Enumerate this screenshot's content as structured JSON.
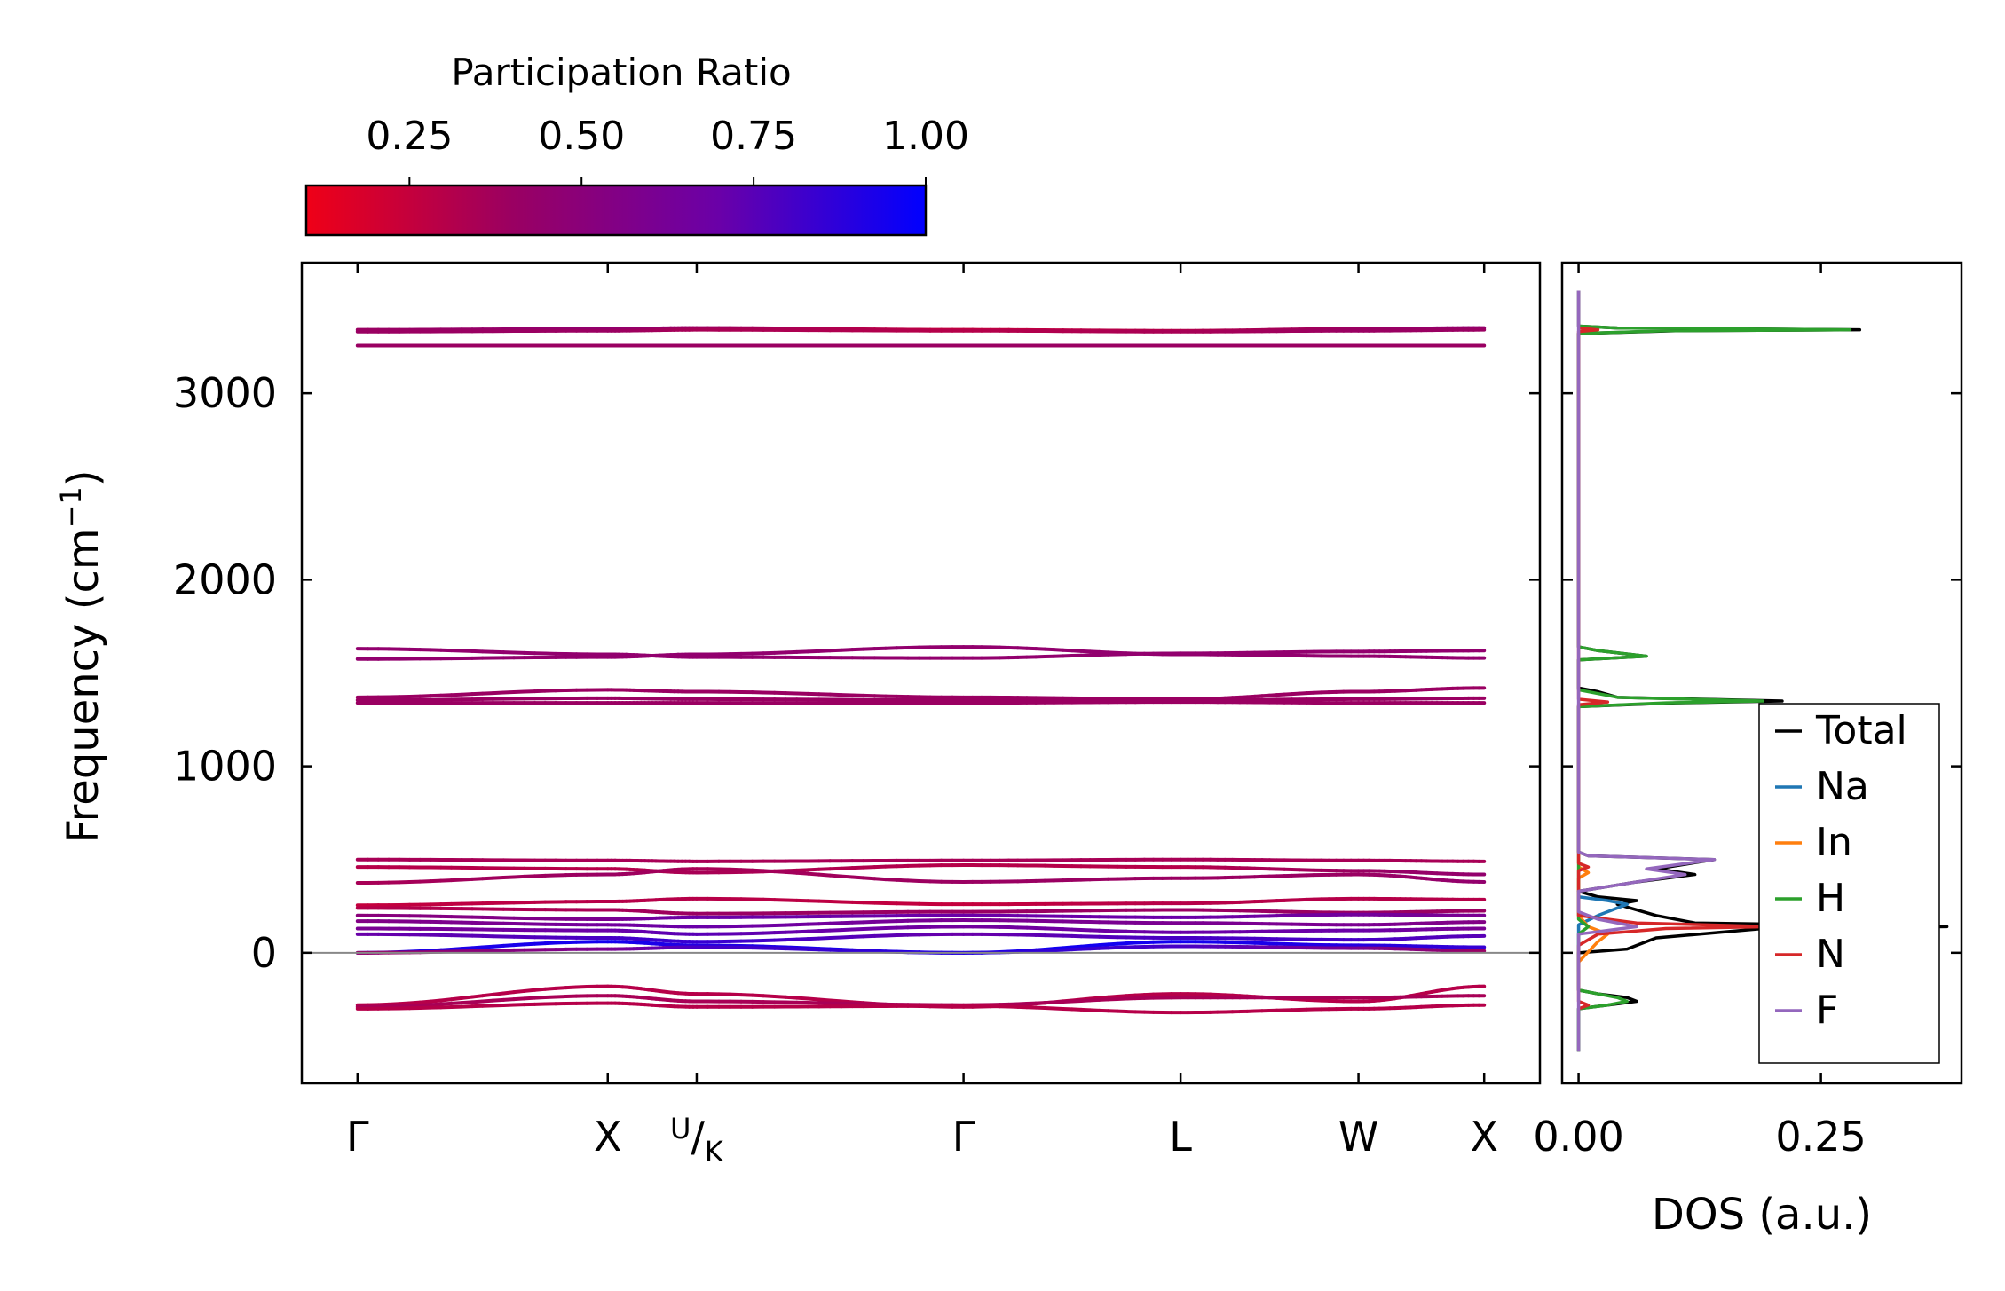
{
  "chart_data": [
    {
      "type": "line",
      "name": "phonon-band-structure",
      "ylabel": "Frequency (cm",
      "ylabel_sup": "−1",
      "ylabel_end": ")",
      "ylim": [
        -700,
        3700
      ],
      "yticks": [
        0,
        1000,
        2000,
        3000
      ],
      "ytick_labels": [
        "0",
        "1000",
        "2000",
        "3000"
      ],
      "kpath": [
        {
          "label": "Γ",
          "pos": 0.0
        },
        {
          "label": "X",
          "pos": 0.211
        },
        {
          "label": "U",
          "sub": "K",
          "pos": 0.286
        },
        {
          "label": "Γ",
          "pos": 0.511
        },
        {
          "label": "L",
          "pos": 0.694
        },
        {
          "label": "W",
          "pos": 0.844
        },
        {
          "label": "X",
          "pos": 0.95
        }
      ],
      "xlim": [
        -0.047,
        0.997
      ],
      "colorbar": {
        "label": "Participation Ratio",
        "range": [
          0.1,
          1.0
        ],
        "ticks": [
          0.25,
          0.5,
          0.75,
          1.0
        ],
        "tick_labels": [
          "0.25",
          "0.50",
          "0.75",
          "1.00"
        ],
        "colors": [
          "#ef0017",
          "#9a0062",
          "#6a00a8",
          "#0000ff"
        ]
      },
      "zero_line": 0,
      "bands": [
        {
          "values": [
            3340,
            3345,
            3350,
            3340,
            3335,
            3345,
            3350
          ],
          "pr": [
            0.4,
            0.45,
            0.4,
            0.25,
            0.3,
            0.4,
            0.45
          ]
        },
        {
          "values": [
            3330,
            3335,
            3340,
            3335,
            3330,
            3335,
            3340
          ],
          "pr": [
            0.4,
            0.4,
            0.35,
            0.3,
            0.35,
            0.4,
            0.4
          ]
        },
        {
          "values": [
            3255,
            3255,
            3255,
            3255,
            3255,
            3255,
            3255
          ],
          "pr": [
            0.4,
            0.4,
            0.4,
            0.4,
            0.4,
            0.4,
            0.4
          ]
        },
        {
          "values": [
            1630,
            1600,
            1585,
            1580,
            1605,
            1615,
            1620
          ],
          "pr": [
            0.45,
            0.45,
            0.45,
            0.45,
            0.45,
            0.45,
            0.45
          ]
        },
        {
          "values": [
            1575,
            1585,
            1600,
            1640,
            1600,
            1590,
            1580
          ],
          "pr": [
            0.45,
            0.45,
            0.45,
            0.45,
            0.45,
            0.45,
            0.45
          ]
        },
        {
          "values": [
            1370,
            1410,
            1400,
            1370,
            1360,
            1400,
            1420
          ],
          "pr": [
            0.4,
            0.4,
            0.4,
            0.4,
            0.4,
            0.4,
            0.4
          ]
        },
        {
          "values": [
            1355,
            1365,
            1360,
            1355,
            1355,
            1360,
            1365
          ],
          "pr": [
            0.4,
            0.4,
            0.4,
            0.4,
            0.4,
            0.4,
            0.4
          ]
        },
        {
          "values": [
            1340,
            1340,
            1340,
            1340,
            1345,
            1340,
            1340
          ],
          "pr": [
            0.4,
            0.4,
            0.4,
            0.4,
            0.4,
            0.4,
            0.4
          ]
        },
        {
          "values": [
            500,
            495,
            490,
            495,
            500,
            495,
            490
          ],
          "pr": [
            0.35,
            0.35,
            0.35,
            0.35,
            0.35,
            0.35,
            0.35
          ]
        },
        {
          "values": [
            460,
            450,
            430,
            470,
            460,
            440,
            420
          ],
          "pr": [
            0.3,
            0.3,
            0.35,
            0.3,
            0.3,
            0.4,
            0.45
          ]
        },
        {
          "values": [
            375,
            420,
            450,
            380,
            400,
            420,
            380
          ],
          "pr": [
            0.35,
            0.4,
            0.35,
            0.4,
            0.4,
            0.4,
            0.45
          ]
        },
        {
          "values": [
            255,
            275,
            290,
            260,
            265,
            290,
            285
          ],
          "pr": [
            0.25,
            0.3,
            0.3,
            0.25,
            0.3,
            0.3,
            0.3
          ]
        },
        {
          "values": [
            240,
            230,
            210,
            220,
            230,
            215,
            225
          ],
          "pr": [
            0.3,
            0.35,
            0.4,
            0.4,
            0.4,
            0.4,
            0.4
          ]
        },
        {
          "values": [
            200,
            180,
            190,
            200,
            190,
            205,
            200
          ],
          "pr": [
            0.5,
            0.6,
            0.7,
            0.7,
            0.7,
            0.65,
            0.6
          ]
        },
        {
          "values": [
            170,
            150,
            140,
            175,
            160,
            150,
            165
          ],
          "pr": [
            0.55,
            0.65,
            0.7,
            0.6,
            0.6,
            0.6,
            0.55
          ]
        },
        {
          "values": [
            130,
            120,
            100,
            140,
            110,
            120,
            130
          ],
          "pr": [
            0.6,
            0.7,
            0.75,
            0.65,
            0.7,
            0.7,
            0.6
          ]
        },
        {
          "values": [
            100,
            80,
            60,
            100,
            80,
            70,
            90
          ],
          "pr": [
            0.7,
            0.8,
            0.85,
            0.7,
            0.8,
            0.8,
            0.75
          ]
        },
        {
          "values": [
            0,
            60,
            40,
            0,
            60,
            40,
            30
          ],
          "pr": [
            0.9,
            0.95,
            0.9,
            0.95,
            0.95,
            0.9,
            0.85
          ]
        },
        {
          "values": [
            0,
            20,
            30,
            0,
            35,
            25,
            10
          ],
          "pr": [
            0.4,
            0.6,
            0.8,
            0.9,
            0.8,
            0.6,
            0.4
          ]
        },
        {
          "values": [
            -280,
            -180,
            -220,
            -290,
            -220,
            -260,
            -180
          ],
          "pr": [
            0.3,
            0.3,
            0.3,
            0.3,
            0.3,
            0.3,
            0.3
          ]
        },
        {
          "values": [
            -290,
            -230,
            -260,
            -280,
            -240,
            -240,
            -230
          ],
          "pr": [
            0.35,
            0.35,
            0.35,
            0.35,
            0.35,
            0.35,
            0.35
          ]
        },
        {
          "values": [
            -300,
            -270,
            -290,
            -285,
            -320,
            -300,
            -280
          ],
          "pr": [
            0.3,
            0.3,
            0.3,
            0.3,
            0.3,
            0.3,
            0.3
          ]
        }
      ]
    },
    {
      "type": "line",
      "name": "phonon-dos",
      "xlabel": "DOS (a.u.)",
      "xlim": [
        -0.017,
        0.395
      ],
      "xticks": [
        0.0,
        0.25
      ],
      "xtick_labels": [
        "0.00",
        "0.25"
      ],
      "ylim": [
        -700,
        3700
      ],
      "legend_position": "bottom-right",
      "series": [
        {
          "name": "Total",
          "color": "#000000",
          "points": [
            [
              0,
              -530
            ],
            [
              0,
              -300
            ],
            [
              0.03,
              -280
            ],
            [
              0.06,
              -260
            ],
            [
              0.05,
              -240
            ],
            [
              0.02,
              -220
            ],
            [
              0,
              -200
            ],
            [
              0,
              0
            ],
            [
              0.05,
              20
            ],
            [
              0.08,
              80
            ],
            [
              0.19,
              130
            ],
            [
              0.38,
              140
            ],
            [
              0.12,
              160
            ],
            [
              0.08,
              200
            ],
            [
              0.04,
              260
            ],
            [
              0.06,
              280
            ],
            [
              0.02,
              300
            ],
            [
              0,
              330
            ],
            [
              0.06,
              380
            ],
            [
              0.12,
              420
            ],
            [
              0.08,
              450
            ],
            [
              0.14,
              500
            ],
            [
              0.01,
              520
            ],
            [
              0,
              540
            ],
            [
              0,
              1320
            ],
            [
              0.1,
              1340
            ],
            [
              0.21,
              1350
            ],
            [
              0.04,
              1370
            ],
            [
              0.02,
              1400
            ],
            [
              0,
              1420
            ],
            [
              0,
              1570
            ],
            [
              0.07,
              1590
            ],
            [
              0.02,
              1620
            ],
            [
              0,
              1640
            ],
            [
              0,
              3320
            ],
            [
              0.1,
              3335
            ],
            [
              0.29,
              3340
            ],
            [
              0.04,
              3350
            ],
            [
              0,
              3360
            ],
            [
              0,
              3550
            ]
          ]
        },
        {
          "name": "Na",
          "color": "#1f77b4",
          "points": [
            [
              0,
              -100
            ],
            [
              0,
              150
            ],
            [
              0.02,
              200
            ],
            [
              0.05,
              260
            ],
            [
              0.03,
              280
            ],
            [
              0,
              300
            ]
          ]
        },
        {
          "name": "In",
          "color": "#ff7f0e",
          "points": [
            [
              0,
              -50
            ],
            [
              0.02,
              60
            ],
            [
              0.03,
              100
            ],
            [
              0.01,
              140
            ],
            [
              0,
              200
            ],
            [
              0,
              400
            ],
            [
              0.01,
              430
            ],
            [
              0,
              460
            ]
          ]
        },
        {
          "name": "H",
          "color": "#2ca02c",
          "points": [
            [
              0,
              -530
            ],
            [
              0,
              -300
            ],
            [
              0.03,
              -280
            ],
            [
              0.05,
              -260
            ],
            [
              0.04,
              -240
            ],
            [
              0.02,
              -220
            ],
            [
              0,
              -200
            ],
            [
              0,
              100
            ],
            [
              0.01,
              140
            ],
            [
              0,
              180
            ],
            [
              0,
              1320
            ],
            [
              0.09,
              1340
            ],
            [
              0.19,
              1350
            ],
            [
              0.04,
              1370
            ],
            [
              0,
              1410
            ],
            [
              0,
              1570
            ],
            [
              0.07,
              1590
            ],
            [
              0.02,
              1620
            ],
            [
              0,
              1640
            ],
            [
              0,
              3320
            ],
            [
              0.09,
              3335
            ],
            [
              0.28,
              3340
            ],
            [
              0.04,
              3350
            ],
            [
              0,
              3360
            ]
          ]
        },
        {
          "name": "N",
          "color": "#d62728",
          "points": [
            [
              0,
              -300
            ],
            [
              0.01,
              -280
            ],
            [
              0,
              -260
            ],
            [
              0,
              40
            ],
            [
              0.02,
              100
            ],
            [
              0.09,
              130
            ],
            [
              0.2,
              140
            ],
            [
              0.06,
              160
            ],
            [
              0,
              200
            ],
            [
              0,
              440
            ],
            [
              0.01,
              460
            ],
            [
              0,
              480
            ],
            [
              0,
              1330
            ],
            [
              0.03,
              1345
            ],
            [
              0,
              1360
            ],
            [
              0,
              3330
            ],
            [
              0.02,
              3340
            ],
            [
              0,
              3350
            ]
          ]
        },
        {
          "name": "F",
          "color": "#9467bd",
          "points": [
            [
              0,
              -530
            ],
            [
              0,
              100
            ],
            [
              0.03,
              120
            ],
            [
              0.06,
              140
            ],
            [
              0.02,
              180
            ],
            [
              0,
              220
            ],
            [
              0,
              330
            ],
            [
              0.06,
              380
            ],
            [
              0.11,
              420
            ],
            [
              0.07,
              450
            ],
            [
              0.14,
              500
            ],
            [
              0.01,
              520
            ],
            [
              0,
              540
            ],
            [
              0,
              3550
            ]
          ]
        }
      ]
    }
  ]
}
